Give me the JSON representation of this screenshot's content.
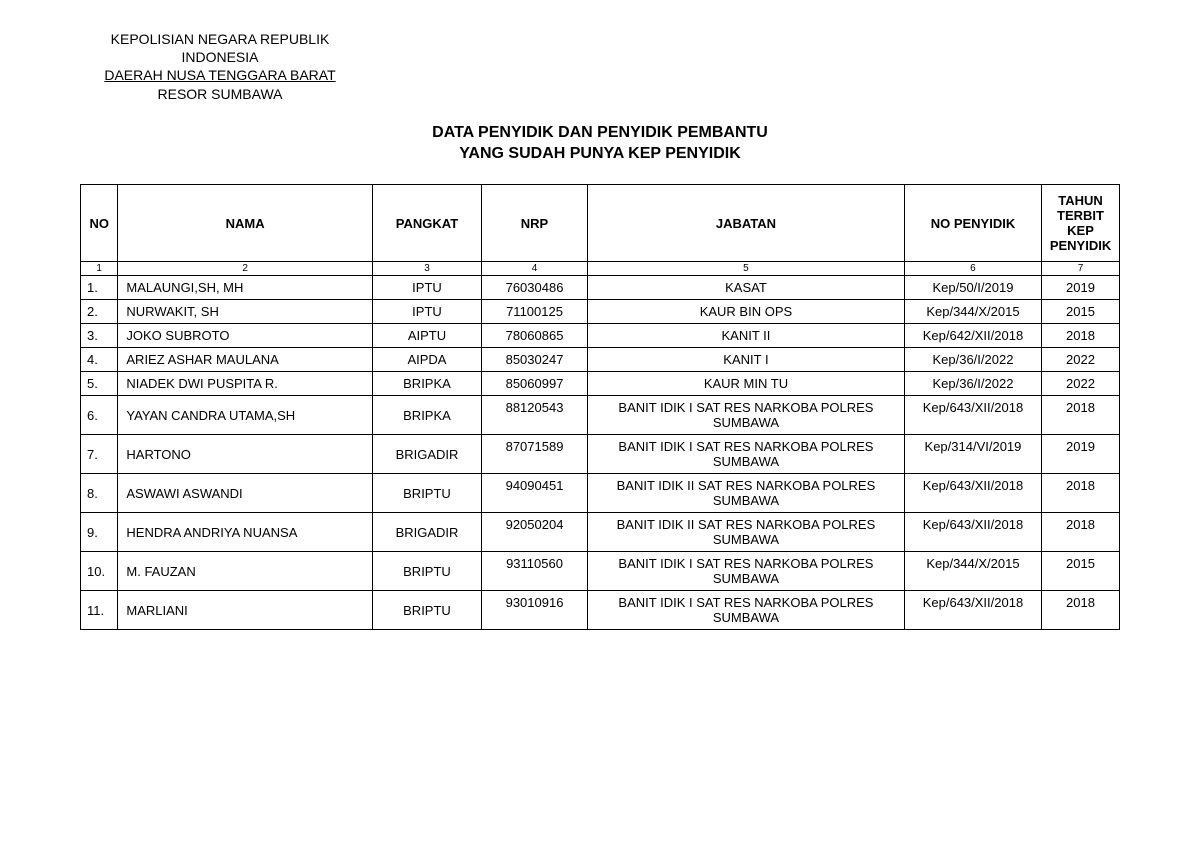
{
  "letterhead": {
    "line1": "KEPOLISIAN NEGARA REPUBLIK",
    "line2": "INDONESIA",
    "line3": "DAERAH NUSA TENGGARA BARAT",
    "line4": "RESOR SUMBAWA"
  },
  "title": {
    "line1": "DATA PENYIDIK DAN PENYIDIK PEMBANTU",
    "line2": "YANG SUDAH PUNYA KEP PENYIDIK"
  },
  "table": {
    "headers": {
      "no": "NO",
      "nama": "NAMA",
      "pangkat": "PANGKAT",
      "nrp": "NRP",
      "jabatan": "JABATAN",
      "no_penyidik": "NO PENYIDIK",
      "tahun": "TAHUN TERBIT KEP PENYIDIK"
    },
    "colnums": [
      "1",
      "2",
      "3",
      "4",
      "5",
      "6",
      "7"
    ],
    "rows": [
      {
        "no": "1.",
        "nama": "MALAUNGI,SH, MH",
        "pangkat": "IPTU",
        "nrp": "76030486",
        "jabatan": "KASAT",
        "no_penyidik": "Kep/50/I/2019",
        "tahun": "2019"
      },
      {
        "no": "2.",
        "nama": "NURWAKIT, SH",
        "pangkat": "IPTU",
        "nrp": "71100125",
        "jabatan": "KAUR BIN OPS",
        "no_penyidik": "Kep/344/X/2015",
        "tahun": "2015"
      },
      {
        "no": "3.",
        "nama": "JOKO SUBROTO",
        "pangkat": "AIPTU",
        "nrp": "78060865",
        "jabatan": "KANIT II",
        "no_penyidik": "Kep/642/XII/2018",
        "tahun": "2018"
      },
      {
        "no": "4.",
        "nama": "ARIEZ ASHAR MAULANA",
        "pangkat": "AIPDA",
        "nrp": "85030247",
        "jabatan": "KANIT I",
        "no_penyidik": "Kep/36/I/2022",
        "tahun": "2022"
      },
      {
        "no": "5.",
        "nama": "NIADEK DWI PUSPITA R.",
        "pangkat": "BRIPKA",
        "nrp": "85060997",
        "jabatan": "KAUR MIN TU",
        "no_penyidik": "Kep/36/I/2022",
        "tahun": "2022"
      },
      {
        "no": "6.",
        "nama": "YAYAN CANDRA UTAMA,SH",
        "pangkat": "BRIPKA",
        "nrp": "88120543",
        "jabatan": "BANIT IDIK I SAT RES NARKOBA POLRES SUMBAWA",
        "no_penyidik": "Kep/643/XII/2018",
        "tahun": "2018"
      },
      {
        "no": "7.",
        "nama": "HARTONO",
        "pangkat": "BRIGADIR",
        "nrp": "87071589",
        "jabatan": "BANIT IDIK I SAT RES NARKOBA POLRES SUMBAWA",
        "no_penyidik": "Kep/314/VI/2019",
        "tahun": "2019"
      },
      {
        "no": "8.",
        "nama": "ASWAWI ASWANDI",
        "pangkat": "BRIPTU",
        "nrp": "94090451",
        "jabatan": "BANIT IDIK II SAT RES NARKOBA POLRES SUMBAWA",
        "no_penyidik": "Kep/643/XII/2018",
        "tahun": "2018"
      },
      {
        "no": "9.",
        "nama": "HENDRA ANDRIYA NUANSA",
        "pangkat": "BRIGADIR",
        "nrp": "92050204",
        "jabatan": "BANIT IDIK II SAT RES NARKOBA POLRES SUMBAWA",
        "no_penyidik": "Kep/643/XII/2018",
        "tahun": "2018"
      },
      {
        "no": "10.",
        "nama": "M. FAUZAN",
        "pangkat": "BRIPTU",
        "nrp": "93110560",
        "jabatan": "BANIT IDIK I SAT RES NARKOBA POLRES SUMBAWA",
        "no_penyidik": "Kep/344/X/2015",
        "tahun": "2015"
      },
      {
        "no": "11.",
        "nama": "MARLIANI",
        "pangkat": "BRIPTU",
        "nrp": "93010916",
        "jabatan": "BANIT IDIK I SAT RES NARKOBA POLRES SUMBAWA",
        "no_penyidik": "Kep/643/XII/2018",
        "tahun": "2018"
      }
    ]
  }
}
